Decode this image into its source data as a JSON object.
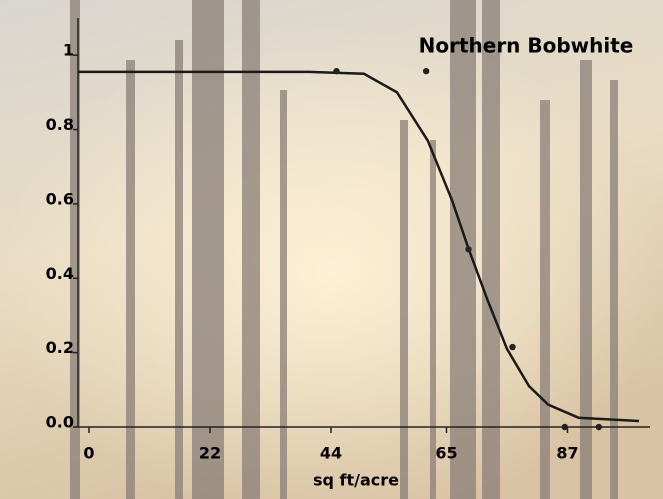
{
  "chart_data": {
    "type": "scatter",
    "title": "Northern Bobwhite",
    "x_label": "sq ft/acre",
    "x": [
      45,
      61.3,
      69,
      77,
      86.5,
      92.7
    ],
    "values": [
      0.957,
      0.957,
      0.478,
      0.215,
      0,
      0
    ],
    "color": "#222222",
    "fit": {
      "x": [
        -2,
        20,
        40,
        50,
        56,
        61.6,
        66,
        69,
        72.5,
        76,
        80,
        83.5,
        89,
        100
      ],
      "values": [
        0.955,
        0.955,
        0.955,
        0.95,
        0.9,
        0.77,
        0.61,
        0.48,
        0.34,
        0.21,
        0.11,
        0.06,
        0.025,
        0.016
      ],
      "color": "#1a1a1a"
    },
    "xlim": [
      -2,
      102
    ],
    "ylim": [
      0,
      1.1
    ],
    "xticks": [
      0,
      22,
      44,
      65,
      87
    ],
    "yticks": [
      {
        "value": 0,
        "label": "0.0"
      },
      0.2,
      0.4,
      0.6,
      0.8,
      1
    ]
  }
}
